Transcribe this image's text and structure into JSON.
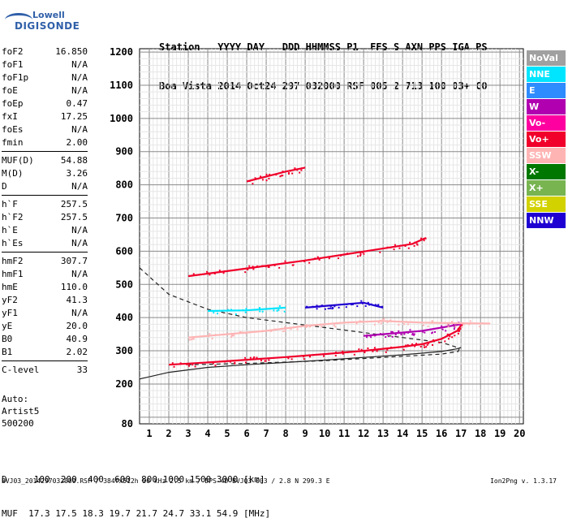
{
  "logo": {
    "line1": "Lowell",
    "line2": "DIGISONDE"
  },
  "header": {
    "row1": "Station   YYYY DAY   DDD HHMMSS P1  FFS S AXN PPS IGA PS",
    "row2": "Boa Vista 2014 Oct24 297 032000 RSF 005 2 713 100 03+ C0"
  },
  "params": [
    {
      "k": "foF2",
      "v": "16.850"
    },
    {
      "k": "foF1",
      "v": "N/A"
    },
    {
      "k": "foF1p",
      "v": "N/A"
    },
    {
      "k": "foE",
      "v": "N/A"
    },
    {
      "k": "foEp",
      "v": "0.47"
    },
    {
      "k": "fxI",
      "v": "17.25"
    },
    {
      "k": "foEs",
      "v": "N/A"
    },
    {
      "k": "fmin",
      "v": "2.00"
    },
    {
      "k": "MUF(D)",
      "v": "54.88"
    },
    {
      "k": "M(D)",
      "v": "3.26"
    },
    {
      "k": "D",
      "v": "N/A"
    },
    {
      "k": "h`F",
      "v": "257.5"
    },
    {
      "k": "h`F2",
      "v": "257.5"
    },
    {
      "k": "h`E",
      "v": "N/A"
    },
    {
      "k": "h`Es",
      "v": "N/A"
    },
    {
      "k": "hmF2",
      "v": "307.7"
    },
    {
      "k": "hmF1",
      "v": "N/A"
    },
    {
      "k": "hmE",
      "v": "110.0"
    },
    {
      "k": "yF2",
      "v": "41.3"
    },
    {
      "k": "yF1",
      "v": "N/A"
    },
    {
      "k": "yE",
      "v": "20.0"
    },
    {
      "k": "B0",
      "v": "40.9"
    },
    {
      "k": "B1",
      "v": "2.02"
    },
    {
      "k": "C-level",
      "v": "33"
    }
  ],
  "auto": {
    "line1": "Auto:",
    "line2": "Artist5",
    "line3": "500200"
  },
  "legend": [
    {
      "label": "NoVal",
      "color": "#a0a0a0"
    },
    {
      "label": "NNE",
      "color": "#00e5ff"
    },
    {
      "label": "E",
      "color": "#2f8cff"
    },
    {
      "label": "W",
      "color": "#b000b0"
    },
    {
      "label": "Vo-",
      "color": "#ff00a0"
    },
    {
      "label": "Vo+",
      "color": "#f0002a"
    },
    {
      "label": "SSW",
      "color": "#ffb4b4"
    },
    {
      "label": "X-",
      "color": "#007800"
    },
    {
      "label": "X+",
      "color": "#78b450"
    },
    {
      "label": "SSE",
      "color": "#d2d200"
    },
    {
      "label": "NNW",
      "color": "#1e00d2"
    }
  ],
  "bottom": {
    "row1": "D     100  200  400  600  800 1000 1500 3000 [km]",
    "row2": "MUF  17.3 17.5 18.3 19.7 21.7 24.7 33.1 54.9 [MHz]"
  },
  "footer": {
    "left": "BVJ03_2014297032000.RSF / 384fx512h 50 kHz 2.5 km / DPS-4D BVJ03 003 / 2.8 N 299.3 E",
    "right": "Ion2Png v. 1.3.17"
  },
  "chart_data": {
    "type": "scatter",
    "title": "",
    "xlabel": "",
    "ylabel": "",
    "xlim": [
      0.5,
      20.2
    ],
    "ylim": [
      80,
      1210
    ],
    "x_ticks": [
      1,
      2,
      3,
      4,
      5,
      6,
      7,
      8,
      9,
      10,
      11,
      12,
      13,
      14,
      15,
      16,
      17,
      18,
      19,
      20
    ],
    "y_ticks": [
      80,
      200,
      300,
      400,
      500,
      600,
      700,
      800,
      900,
      1000,
      1100,
      1200
    ],
    "grid": true,
    "traces": [
      {
        "name": "Vo+",
        "color": "#f0002a",
        "points": [
          [
            2,
            258
          ],
          [
            4,
            265
          ],
          [
            6,
            273
          ],
          [
            8,
            281
          ],
          [
            10,
            290
          ],
          [
            12,
            300
          ],
          [
            14,
            312
          ],
          [
            15,
            320
          ],
          [
            16,
            336
          ],
          [
            16.8,
            360
          ],
          [
            17.1,
            385
          ]
        ]
      },
      {
        "name": "Vo+",
        "color": "#f0002a",
        "points": [
          [
            3,
            525
          ],
          [
            5,
            540
          ],
          [
            7,
            556
          ],
          [
            9,
            572
          ],
          [
            11,
            590
          ],
          [
            13,
            608
          ],
          [
            14.5,
            622
          ],
          [
            15.2,
            640
          ]
        ]
      },
      {
        "name": "W",
        "color": "#b000b0",
        "points": [
          [
            12,
            345
          ],
          [
            13,
            350
          ],
          [
            14,
            355
          ],
          [
            15,
            360
          ],
          [
            16,
            370
          ],
          [
            17,
            380
          ]
        ]
      },
      {
        "name": "SSW",
        "color": "#ffb4b4",
        "points": [
          [
            3,
            340
          ],
          [
            5,
            350
          ],
          [
            7,
            360
          ],
          [
            9,
            375
          ],
          [
            11,
            385
          ],
          [
            13,
            390
          ],
          [
            15,
            385
          ],
          [
            17,
            383
          ],
          [
            18.5,
            382
          ]
        ]
      },
      {
        "name": "NNE",
        "color": "#00e5ff",
        "points": [
          [
            4,
            420
          ],
          [
            6,
            422
          ],
          [
            8,
            430
          ]
        ]
      },
      {
        "name": "NNW",
        "color": "#1e00d2",
        "points": [
          [
            9,
            430
          ],
          [
            10,
            435
          ],
          [
            11,
            440
          ],
          [
            12,
            445
          ],
          [
            13,
            430
          ]
        ]
      },
      {
        "name": "Vo+",
        "color": "#f0002a",
        "points": [
          [
            6,
            810
          ],
          [
            7,
            825
          ],
          [
            8,
            840
          ],
          [
            9,
            852
          ]
        ]
      }
    ],
    "profiles": [
      {
        "name": "profile-dashed",
        "style": "dashed",
        "points": [
          [
            0.5,
            550
          ],
          [
            2,
            470
          ],
          [
            4,
            425
          ],
          [
            6,
            400
          ],
          [
            8,
            385
          ],
          [
            10,
            370
          ],
          [
            12,
            355
          ],
          [
            14,
            340
          ],
          [
            16,
            325
          ],
          [
            16.7,
            312
          ],
          [
            16.9,
            305
          ],
          [
            16.85,
            298
          ],
          [
            16,
            290
          ],
          [
            13,
            280
          ],
          [
            10,
            270
          ],
          [
            6,
            262
          ],
          [
            3,
            258
          ]
        ]
      },
      {
        "name": "profile-solid",
        "style": "solid",
        "points": [
          [
            0.5,
            215
          ],
          [
            2,
            235
          ],
          [
            4,
            250
          ],
          [
            6,
            258
          ],
          [
            8,
            265
          ],
          [
            10,
            272
          ],
          [
            12,
            280
          ],
          [
            14,
            288
          ],
          [
            16,
            298
          ],
          [
            16.8,
            306
          ],
          [
            17,
            310
          ]
        ]
      }
    ]
  }
}
